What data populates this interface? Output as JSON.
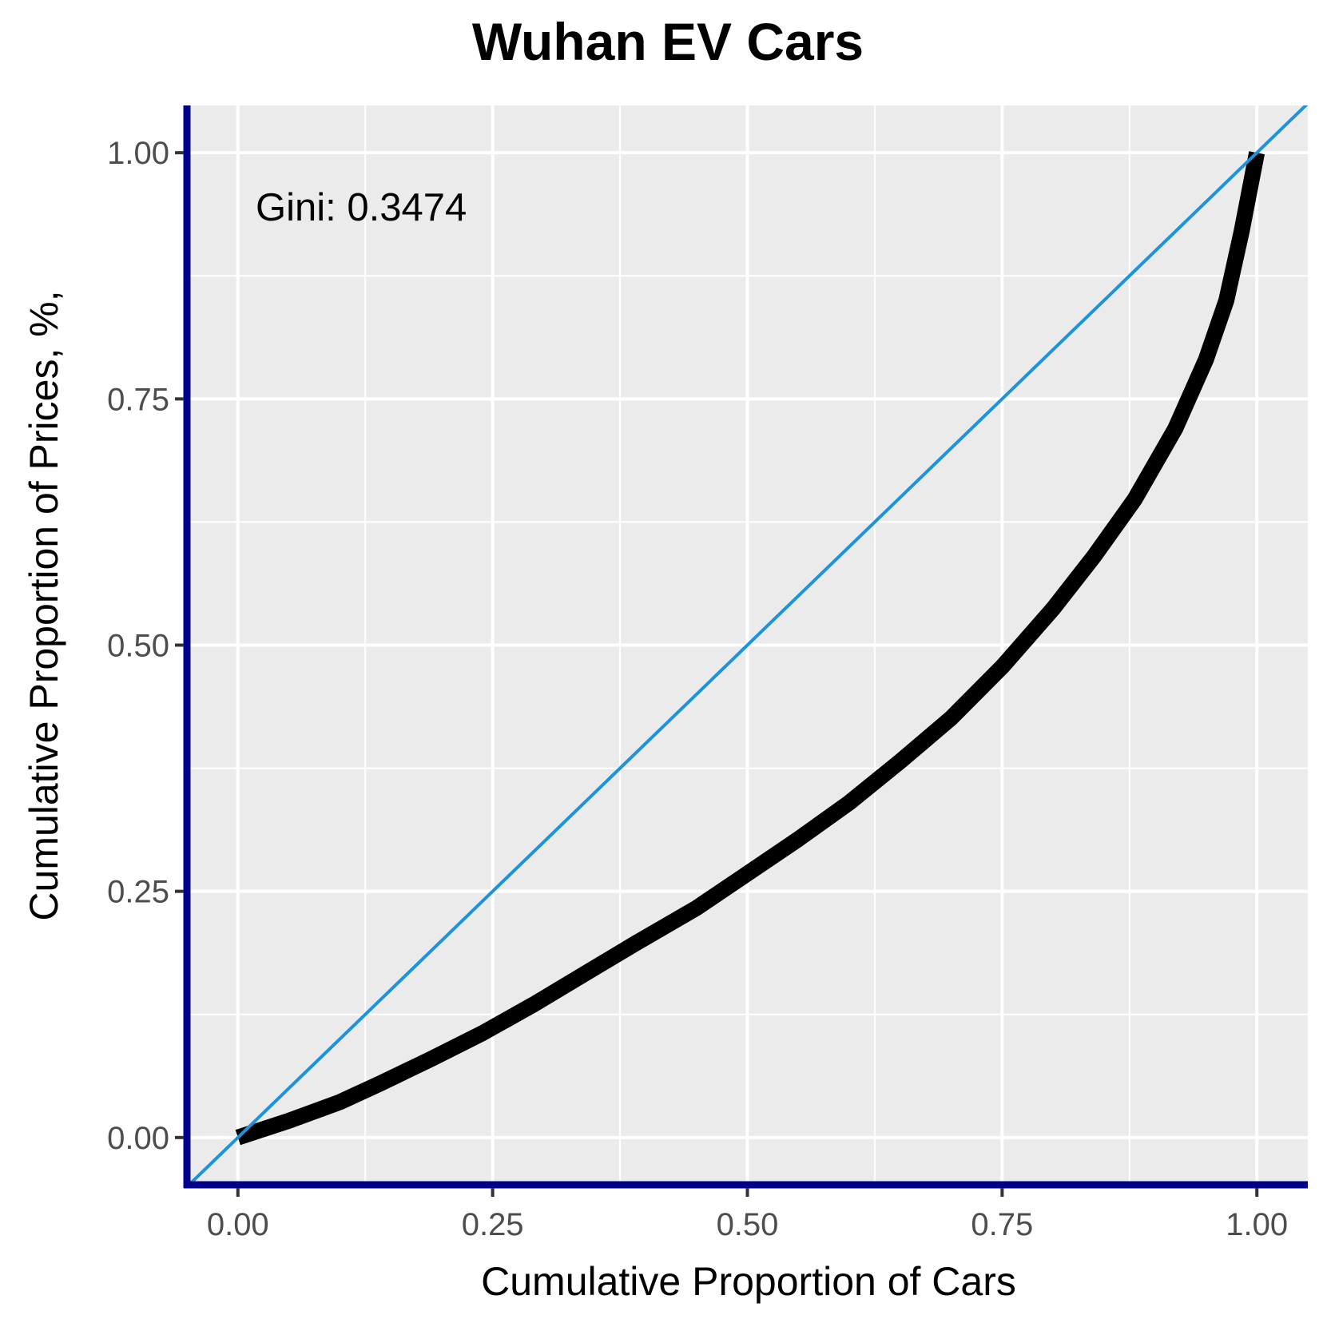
{
  "chart_data": {
    "type": "line",
    "title": "Wuhan EV Cars",
    "xlabel": "Cumulative Proportion of Cars",
    "ylabel": "Cumulative Proportion of Prices, %,",
    "xlim": [
      -0.05,
      1.05
    ],
    "ylim": [
      -0.048,
      1.048
    ],
    "x_ticks": [
      0.0,
      0.25,
      0.5,
      0.75,
      1.0
    ],
    "x_tick_labels": [
      "0.00",
      "0.25",
      "0.50",
      "0.75",
      "1.00"
    ],
    "y_ticks": [
      0.0,
      0.25,
      0.5,
      0.75,
      1.0
    ],
    "y_tick_labels": [
      "0.00",
      "0.25",
      "0.50",
      "0.75",
      "1.00"
    ],
    "grid": true,
    "annotation": "Gini: 0.3474",
    "series": [
      {
        "kind": "lorenz-curve",
        "color": "#000000",
        "x": [
          0.0,
          0.05,
          0.1,
          0.14,
          0.19,
          0.24,
          0.29,
          0.34,
          0.39,
          0.45,
          0.5,
          0.55,
          0.6,
          0.65,
          0.7,
          0.75,
          0.8,
          0.84,
          0.88,
          0.92,
          0.95,
          0.97,
          0.985,
          1.0
        ],
        "y": [
          0.0,
          0.017,
          0.036,
          0.055,
          0.08,
          0.106,
          0.135,
          0.166,
          0.197,
          0.233,
          0.268,
          0.303,
          0.34,
          0.382,
          0.426,
          0.478,
          0.537,
          0.59,
          0.648,
          0.72,
          0.79,
          0.85,
          0.92,
          1.0
        ]
      },
      {
        "kind": "equality-line",
        "color": "#1c93dc",
        "x": [
          -0.05,
          1.05
        ],
        "y": [
          -0.05,
          1.05
        ]
      }
    ]
  },
  "colors": {
    "panel_background": "#ebebeb",
    "grid": "#ffffff",
    "axis_line": "#00008b",
    "tick_mark": "#333333"
  }
}
